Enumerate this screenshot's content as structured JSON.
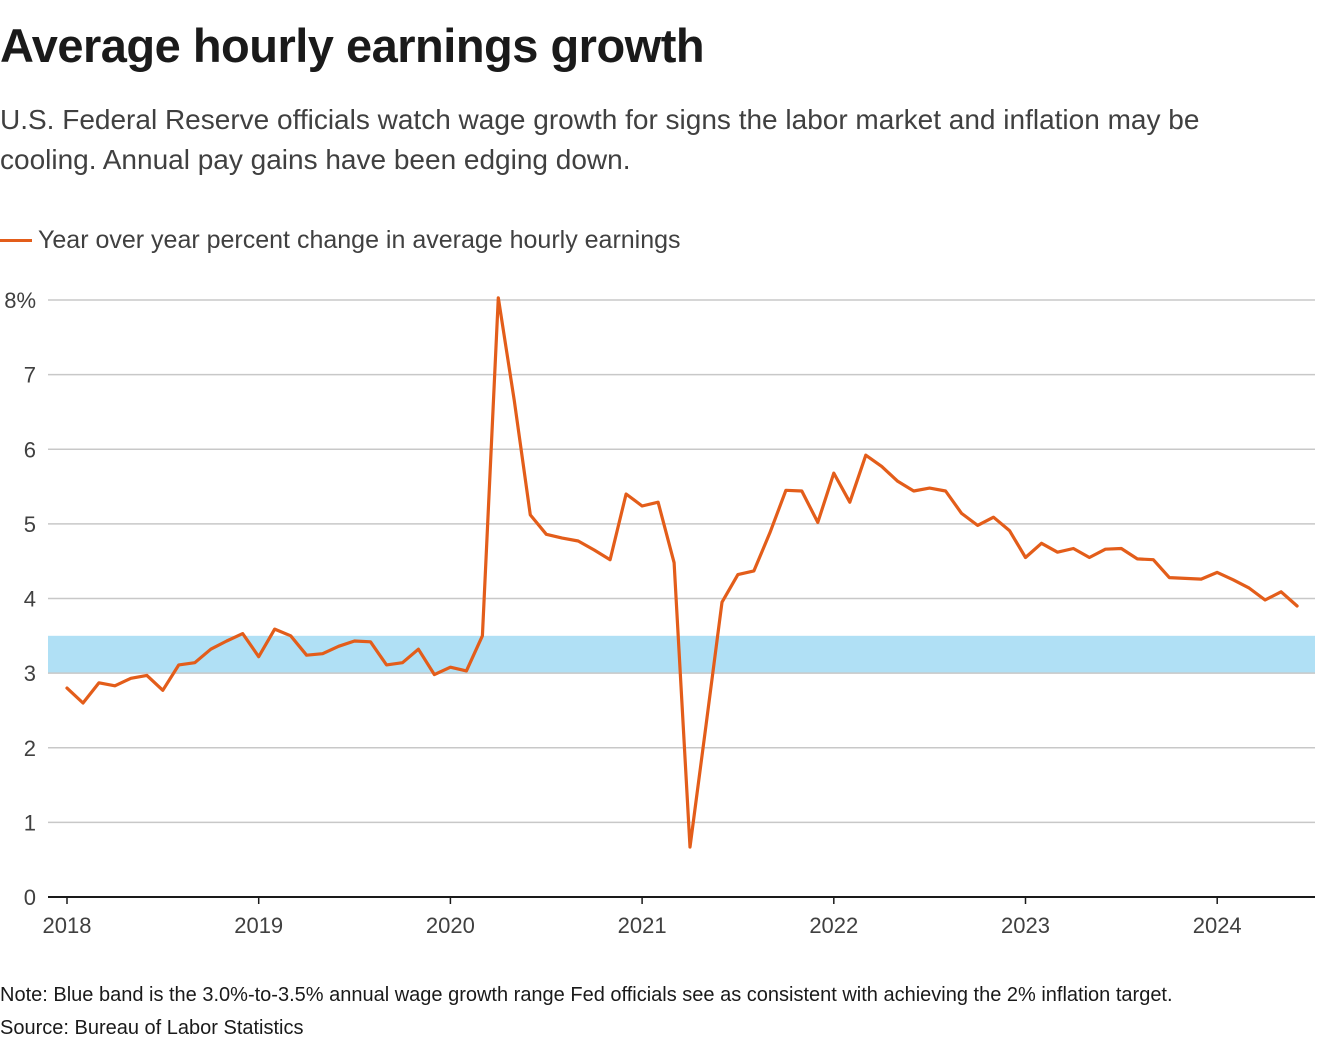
{
  "chart_data": {
    "type": "line",
    "title": "Average hourly earnings growth",
    "subtitle": "U.S. Federal Reserve officials watch wage growth for signs the labor market and inflation may be cooling. Annual pay gains have been edging down.",
    "legend": [
      {
        "label": "Year over year percent change in average hourly earnings",
        "color": "#e35d1a"
      }
    ],
    "legend_placement": "top-left",
    "ylim": [
      0,
      8
    ],
    "yticks": [
      0,
      1,
      2,
      3,
      4,
      5,
      6,
      7,
      8
    ],
    "ytick_labels": [
      "0",
      "1",
      "2",
      "3",
      "4",
      "5",
      "6",
      "7",
      "8%"
    ],
    "xlim": [
      2018,
      2024.5
    ],
    "xticks": [
      2018,
      2019,
      2020,
      2021,
      2022,
      2023,
      2024
    ],
    "xtick_labels": [
      "2018",
      "2019",
      "2020",
      "2021",
      "2022",
      "2023",
      "2024"
    ],
    "grid": true,
    "band": {
      "from": 3.0,
      "to": 3.5,
      "color": "#b0e0f5"
    },
    "series": [
      {
        "name": "Year over year percent change in average hourly earnings",
        "color": "#e35d1a",
        "start": "2018-01",
        "values": [
          2.8,
          2.6,
          2.87,
          2.83,
          2.93,
          2.97,
          2.77,
          3.11,
          3.14,
          3.32,
          3.43,
          3.53,
          3.22,
          3.59,
          3.5,
          3.24,
          3.26,
          3.36,
          3.43,
          3.42,
          3.11,
          3.14,
          3.32,
          2.98,
          3.08,
          3.03,
          3.5,
          8.03,
          6.65,
          5.12,
          4.86,
          4.81,
          4.77,
          4.65,
          4.52,
          5.4,
          5.24,
          5.29,
          4.48,
          0.67,
          2.3,
          3.95,
          4.32,
          4.37,
          4.88,
          5.45,
          5.44,
          5.02,
          5.68,
          5.29,
          5.92,
          5.77,
          5.57,
          5.44,
          5.48,
          5.44,
          5.14,
          4.98,
          5.09,
          4.91,
          4.55,
          4.74,
          4.62,
          4.67,
          4.55,
          4.66,
          4.67,
          4.53,
          4.52,
          4.28,
          4.27,
          4.26,
          4.35,
          4.25,
          4.14,
          3.98,
          4.09,
          3.9
        ]
      }
    ]
  },
  "footer": {
    "note": "Note: Blue band is the 3.0%-to-3.5% annual wage growth range Fed officials see as consistent with achieving the 2% inflation target.",
    "source": "Source: Bureau of Labor Statistics"
  }
}
